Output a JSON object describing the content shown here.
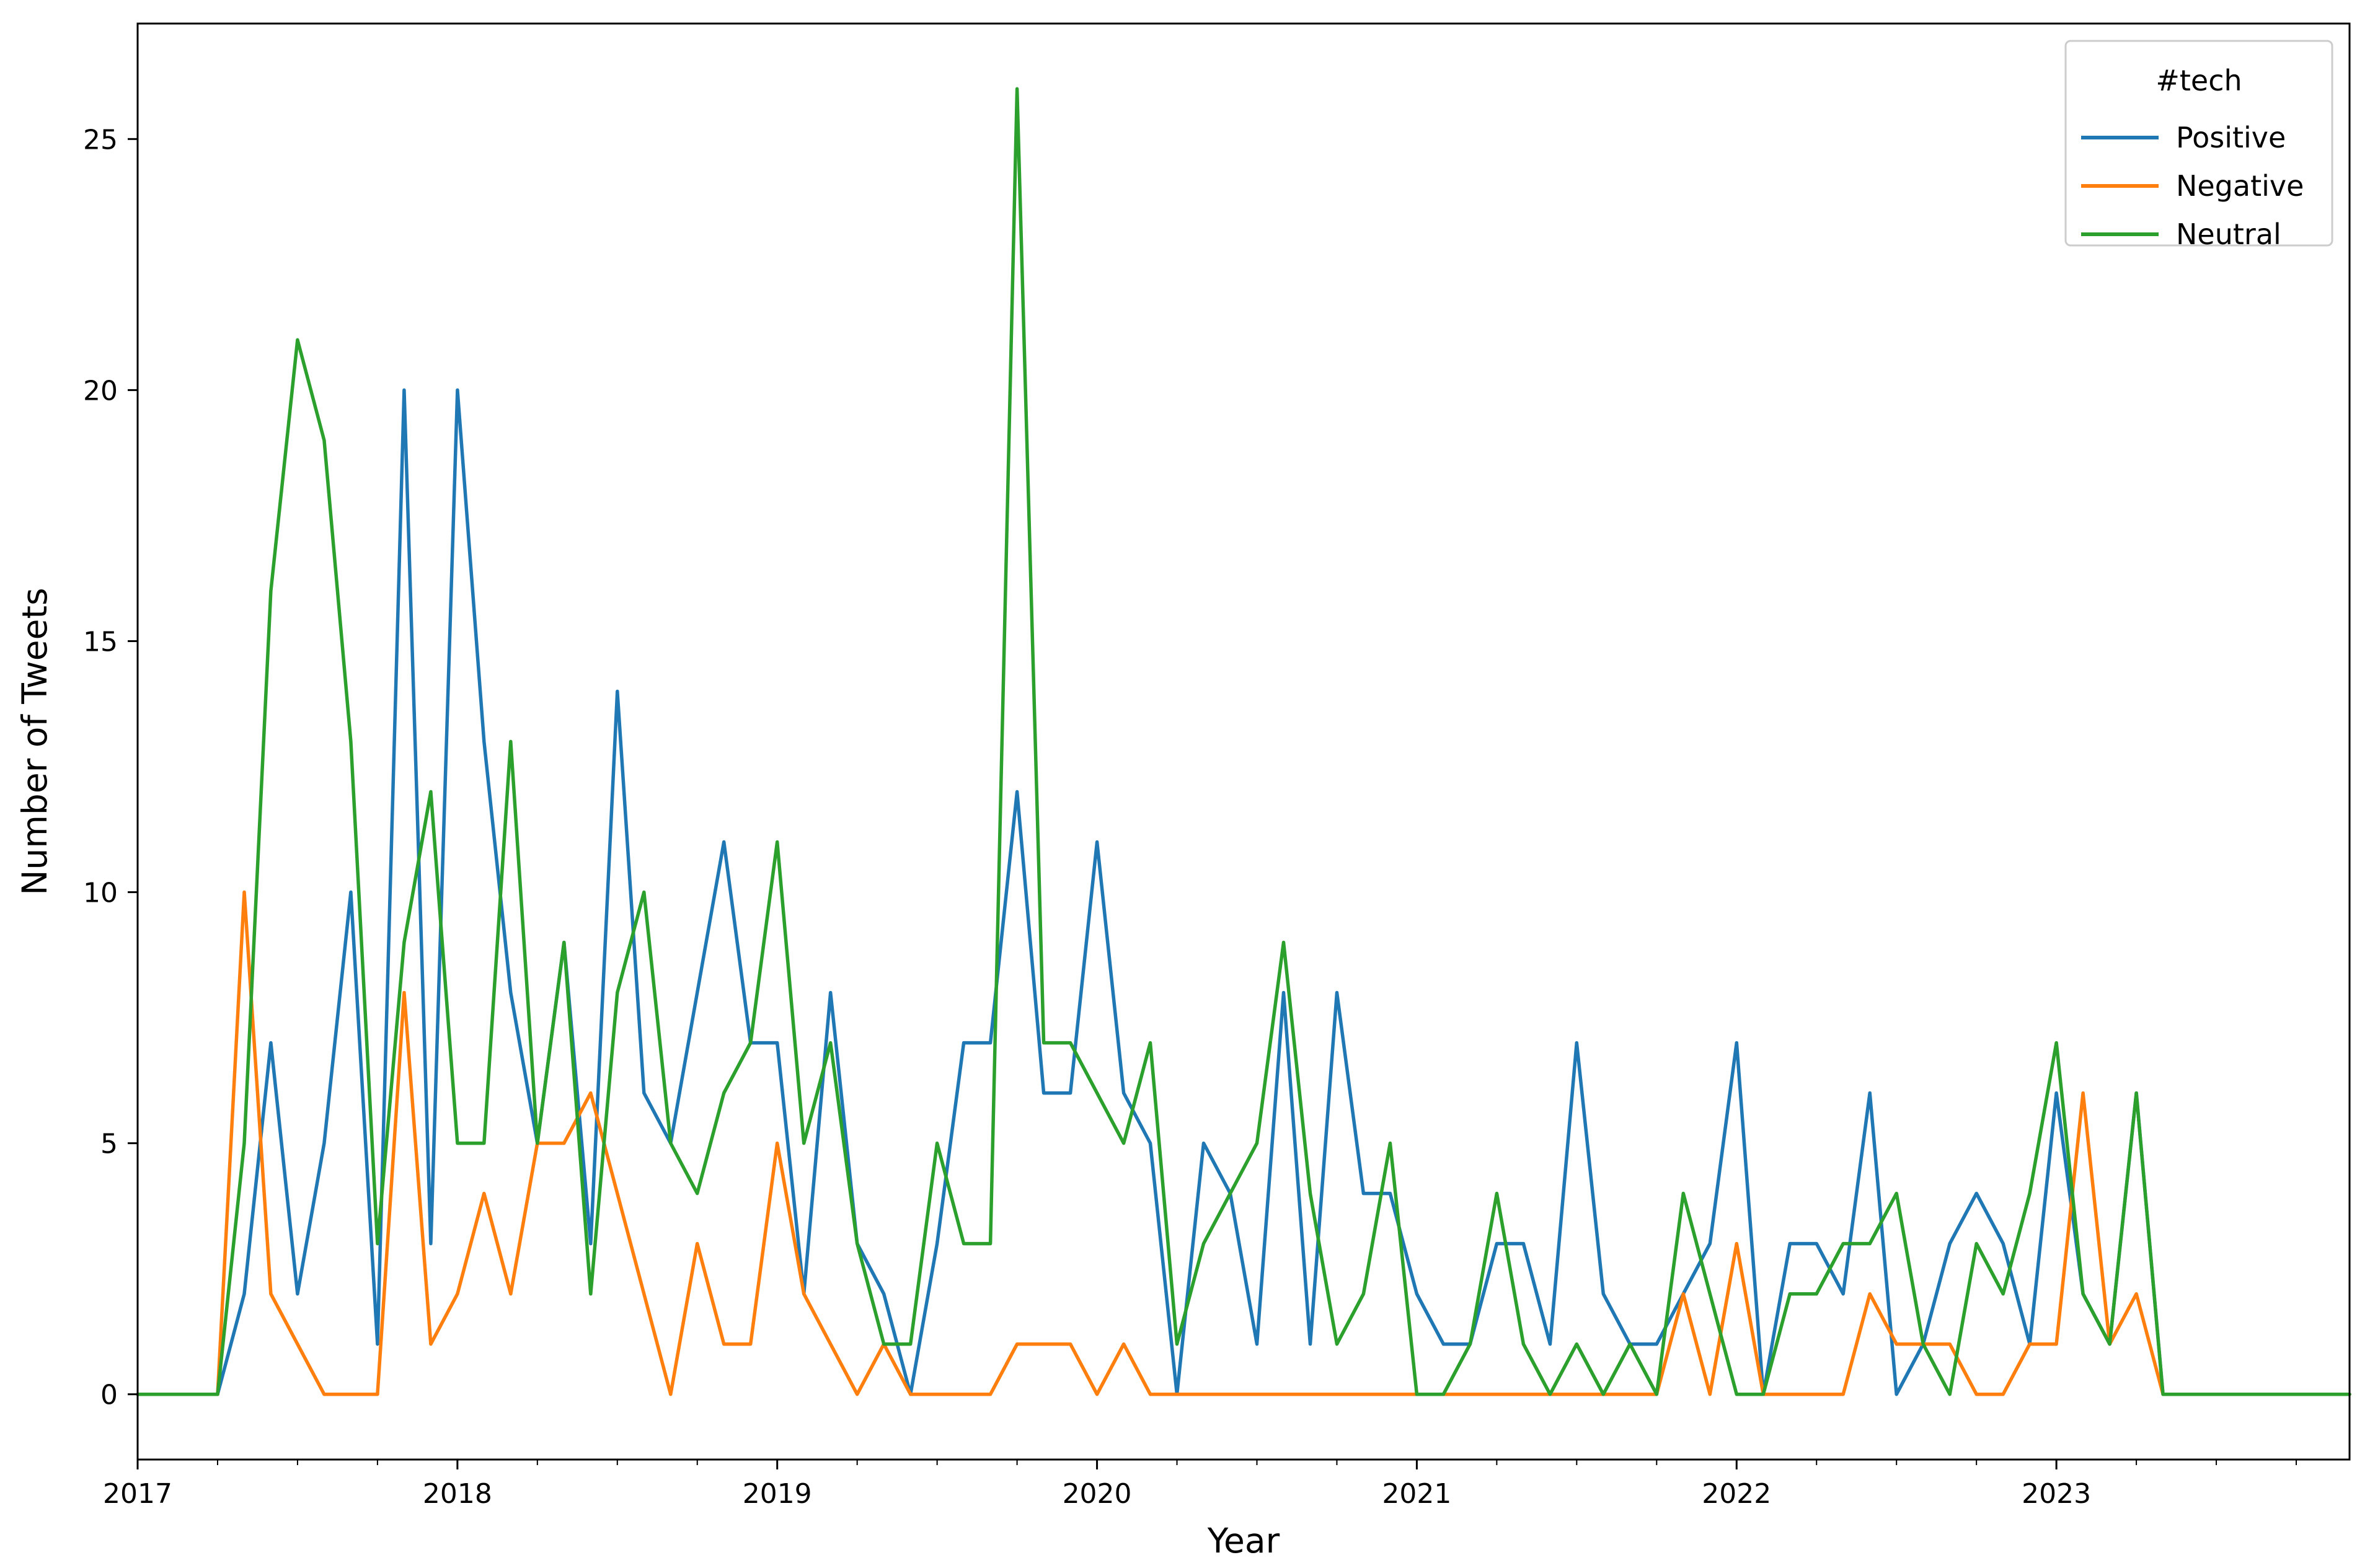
{
  "chart_data": {
    "type": "line",
    "title": "",
    "xlabel": "Year",
    "ylabel": "Number of Tweets",
    "xlim": [
      "2017-01",
      "2023-12"
    ],
    "ylim": [
      -1.3,
      27.3
    ],
    "x_ticks": [
      "2017",
      "2018",
      "2019",
      "2020",
      "2021",
      "2022",
      "2023"
    ],
    "y_ticks": [
      0,
      5,
      10,
      15,
      20,
      25
    ],
    "grid": false,
    "legend": {
      "title": "#tech",
      "position": "top-right"
    },
    "x": [
      "2017-01",
      "2017-02",
      "2017-03",
      "2017-04",
      "2017-05",
      "2017-06",
      "2017-07",
      "2017-08",
      "2017-09",
      "2017-10",
      "2017-11",
      "2017-12",
      "2018-01",
      "2018-02",
      "2018-03",
      "2018-04",
      "2018-05",
      "2018-06",
      "2018-07",
      "2018-08",
      "2018-09",
      "2018-10",
      "2018-11",
      "2018-12",
      "2019-01",
      "2019-02",
      "2019-03",
      "2019-04",
      "2019-05",
      "2019-06",
      "2019-07",
      "2019-08",
      "2019-09",
      "2019-10",
      "2019-11",
      "2019-12",
      "2020-01",
      "2020-02",
      "2020-03",
      "2020-04",
      "2020-05",
      "2020-06",
      "2020-07",
      "2020-08",
      "2020-09",
      "2020-10",
      "2020-11",
      "2020-12",
      "2021-01",
      "2021-02",
      "2021-03",
      "2021-04",
      "2021-05",
      "2021-06",
      "2021-07",
      "2021-08",
      "2021-09",
      "2021-10",
      "2021-11",
      "2021-12",
      "2022-01",
      "2022-02",
      "2022-03",
      "2022-04",
      "2022-05",
      "2022-06",
      "2022-07",
      "2022-08",
      "2022-09",
      "2022-10",
      "2022-11",
      "2022-12",
      "2023-01",
      "2023-02",
      "2023-03",
      "2023-04",
      "2023-05",
      "2023-06",
      "2023-07",
      "2023-08",
      "2023-09",
      "2023-10",
      "2023-11",
      "2023-12"
    ],
    "series": [
      {
        "name": "Positive",
        "color": "#1f77b4",
        "values": [
          0,
          0,
          0,
          0,
          2,
          7,
          2,
          5,
          10,
          1,
          20,
          3,
          20,
          13,
          8,
          5,
          9,
          3,
          14,
          6,
          5,
          8,
          11,
          7,
          7,
          2,
          8,
          3,
          2,
          0,
          3,
          7,
          7,
          12,
          6,
          6,
          11,
          6,
          5,
          0,
          5,
          4,
          1,
          8,
          1,
          8,
          4,
          4,
          2,
          1,
          1,
          3,
          3,
          1,
          7,
          2,
          1,
          1,
          2,
          3,
          7,
          0,
          3,
          3,
          2,
          6,
          0,
          1,
          3,
          4,
          3,
          1,
          6,
          2,
          1,
          6,
          0,
          0,
          0,
          0,
          0,
          0,
          0,
          0
        ]
      },
      {
        "name": "Negative",
        "color": "#ff7f0e",
        "values": [
          0,
          0,
          0,
          0,
          10,
          2,
          1,
          0,
          0,
          0,
          8,
          1,
          2,
          4,
          2,
          5,
          5,
          6,
          4,
          2,
          0,
          3,
          1,
          1,
          5,
          2,
          1,
          0,
          1,
          0,
          0,
          0,
          0,
          1,
          1,
          1,
          0,
          1,
          0,
          0,
          0,
          0,
          0,
          0,
          0,
          0,
          0,
          0,
          0,
          0,
          0,
          0,
          0,
          0,
          0,
          0,
          0,
          0,
          2,
          0,
          3,
          0,
          0,
          0,
          0,
          2,
          1,
          1,
          1,
          0,
          0,
          1,
          1,
          6,
          1,
          2,
          0,
          0,
          0,
          0,
          0,
          0,
          0,
          0
        ]
      },
      {
        "name": "Neutral",
        "color": "#2ca02c",
        "values": [
          0,
          0,
          0,
          0,
          5,
          16,
          21,
          19,
          13,
          3,
          9,
          12,
          5,
          5,
          13,
          5,
          9,
          2,
          8,
          10,
          5,
          4,
          6,
          7,
          11,
          5,
          7,
          3,
          1,
          1,
          5,
          3,
          3,
          26,
          7,
          7,
          6,
          5,
          7,
          1,
          3,
          4,
          5,
          9,
          4,
          1,
          2,
          5,
          0,
          0,
          1,
          4,
          1,
          0,
          1,
          0,
          1,
          0,
          4,
          2,
          0,
          0,
          2,
          2,
          3,
          3,
          4,
          1,
          0,
          3,
          2,
          4,
          7,
          2,
          1,
          6,
          0,
          0,
          0,
          0,
          0,
          0,
          0,
          0
        ]
      }
    ]
  }
}
